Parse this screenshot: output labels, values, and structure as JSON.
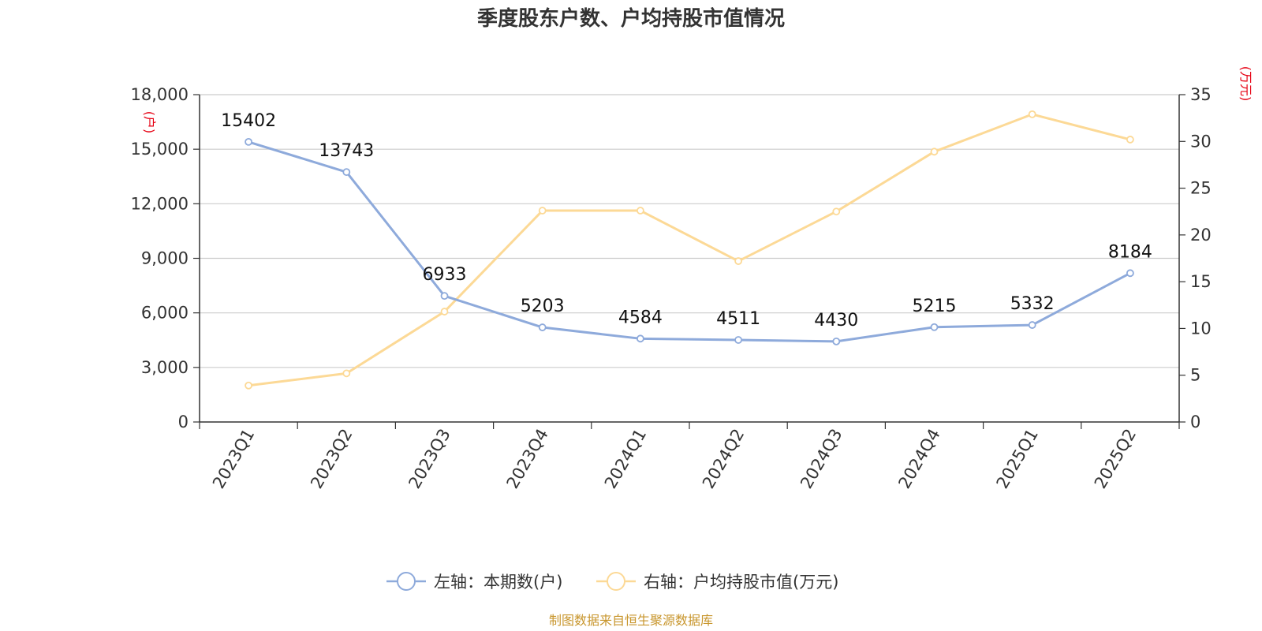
{
  "chart_data": {
    "type": "line",
    "title": "季度股东户数、户均持股市值情况",
    "categories": [
      "2023Q1",
      "2023Q2",
      "2023Q3",
      "2023Q4",
      "2024Q1",
      "2024Q2",
      "2024Q3",
      "2024Q4",
      "2025Q1",
      "2025Q2"
    ],
    "series": [
      {
        "name": "左轴：本期数(户)",
        "axis": "left",
        "color": "#8eaadb",
        "values": [
          15402,
          13743,
          6933,
          5203,
          4584,
          4511,
          4430,
          5215,
          5332,
          8184
        ],
        "data_labels": [
          "15402",
          "13743",
          "6933",
          "5203",
          "4584",
          "4511",
          "4430",
          "5215",
          "5332",
          "8184"
        ]
      },
      {
        "name": "右轴：户均持股市值(万元)",
        "axis": "right",
        "color": "#fcd996",
        "values": [
          3.9,
          5.2,
          11.8,
          22.6,
          22.6,
          17.2,
          22.5,
          28.9,
          32.9,
          30.2
        ]
      }
    ],
    "y_left": {
      "unit": "(户)",
      "range": [
        0,
        18000
      ],
      "ticks": [
        0,
        3000,
        6000,
        9000,
        12000,
        15000,
        18000
      ],
      "tick_labels": [
        "0",
        "3,000",
        "6,000",
        "9,000",
        "12,000",
        "15,000",
        "18,000"
      ]
    },
    "y_right": {
      "unit": "(万元)",
      "range": [
        0,
        35
      ],
      "ticks": [
        0,
        5,
        10,
        15,
        20,
        25,
        30,
        35
      ],
      "tick_labels": [
        "0",
        "5",
        "10",
        "15",
        "20",
        "25",
        "30",
        "35"
      ]
    },
    "grid": true,
    "legend_position": "bottom",
    "source": "制图数据来自恒生聚源数据库",
    "colors": {
      "axis": "#333333",
      "grid": "#cccccc",
      "unit": "#e60012",
      "source": "#c8962d"
    }
  }
}
